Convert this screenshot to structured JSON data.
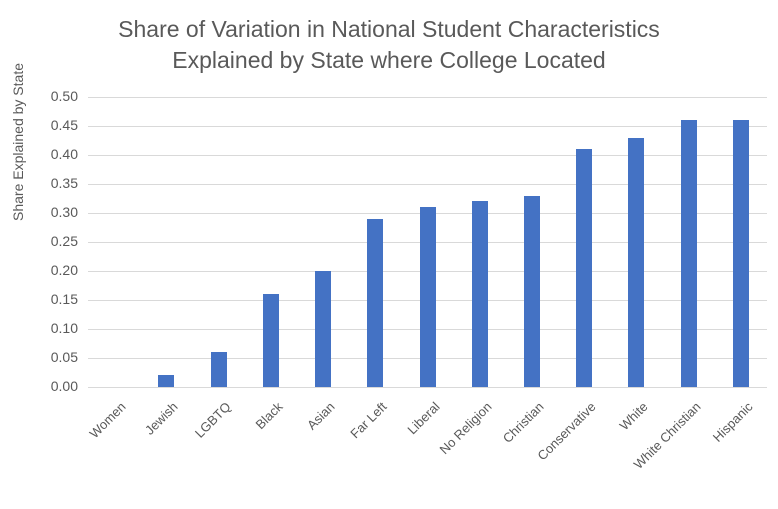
{
  "chart_data": {
    "type": "bar",
    "title": "Share of Variation in National Student Characteristics Explained by State where College Located",
    "title_lines": [
      "Share of Variation in National Student Characteristics",
      "Explained by State where College Located"
    ],
    "xlabel": "",
    "ylabel": "Share Explained by State",
    "ylim": [
      0,
      0.5
    ],
    "yticks": [
      "0.00",
      "0.05",
      "0.10",
      "0.15",
      "0.20",
      "0.25",
      "0.30",
      "0.35",
      "0.40",
      "0.45",
      "0.50"
    ],
    "grid": true,
    "legend": "none",
    "bar_color": "#4472c4",
    "categories": [
      "Women",
      "Jewish",
      "LGBTQ",
      "Black",
      "Asian",
      "Far Left",
      "Liberal",
      "No Religion",
      "Christian",
      "Conservative",
      "White",
      "White Christian",
      "Hispanic"
    ],
    "values": [
      0.0,
      0.02,
      0.06,
      0.16,
      0.2,
      0.29,
      0.31,
      0.32,
      0.33,
      0.41,
      0.43,
      0.46,
      0.46
    ]
  }
}
